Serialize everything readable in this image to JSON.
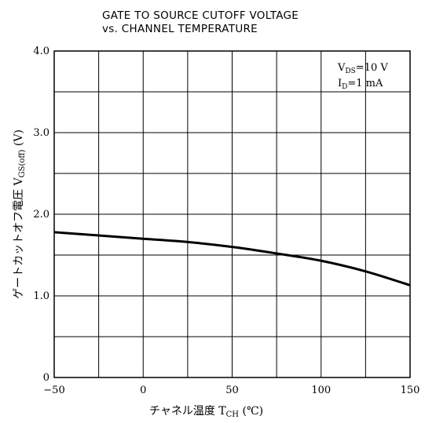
{
  "chart_data": {
    "type": "line",
    "title_lines": [
      "GATE TO SOURCE CUTOFF VOLTAGE",
      "vs. CHANNEL TEMPERATURE"
    ],
    "xlabel": "チャネル温度 TCH (℃)",
    "ylabel": "ゲートカットオフ電圧 VGS(off) (V)",
    "xlim": [
      -50,
      150
    ],
    "ylim": [
      0,
      4.0
    ],
    "x_ticks": [
      -50,
      0,
      50,
      100,
      150
    ],
    "x_tick_labels": [
      "−50",
      "0",
      "50",
      "100",
      "150"
    ],
    "y_ticks": [
      0,
      1.0,
      2.0,
      3.0,
      4.0
    ],
    "y_tick_labels": [
      "0",
      "1.0",
      "2.0",
      "3.0",
      "4.0"
    ],
    "grid": true,
    "conditions": [
      "VDS=10 V",
      "ID=1 mA"
    ],
    "series": [
      {
        "x": [
          -50,
          -25,
          0,
          25,
          50,
          75,
          100,
          125,
          150
        ],
        "y": [
          1.78,
          1.74,
          1.7,
          1.66,
          1.6,
          1.52,
          1.43,
          1.3,
          1.13
        ]
      }
    ]
  }
}
